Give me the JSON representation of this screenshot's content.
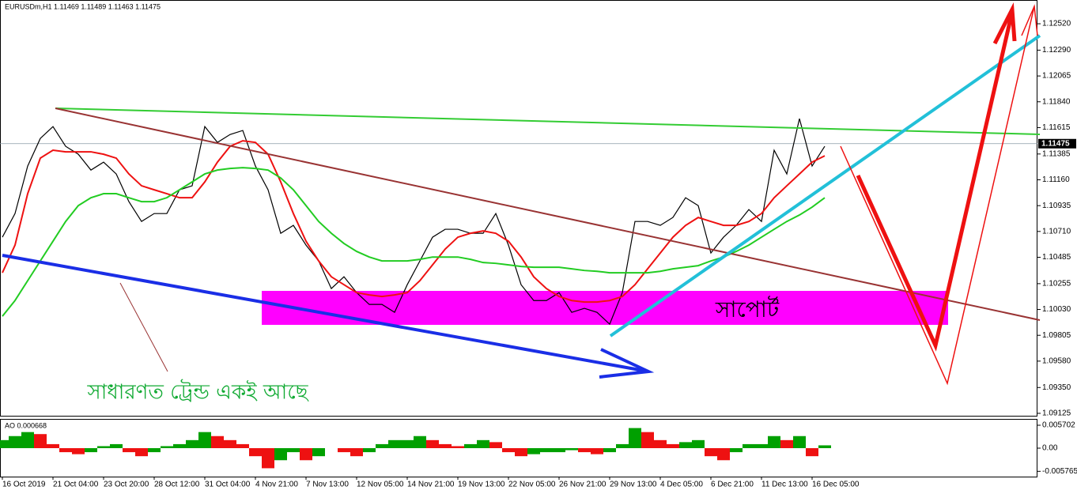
{
  "chart_data": [
    {
      "type": "line",
      "title": "EURUSDm,H1  1.11469 1.11489 1.11463 1.11475",
      "categories": [
        "16 Oct 2019",
        null,
        null,
        null,
        "21 Oct 04:00",
        null,
        null,
        null,
        "23 Oct 20:00",
        null,
        null,
        null,
        "28 Oct 12:00",
        null,
        null,
        null,
        "31 Oct 04:00",
        null,
        null,
        null,
        "4 Nov 21:00",
        null,
        null,
        null,
        "7 Nov 13:00",
        null,
        null,
        null,
        "12 Nov 05:00",
        null,
        null,
        null,
        "14 Nov 21:00",
        null,
        null,
        null,
        "19 Nov 13:00",
        null,
        null,
        null,
        "22 Nov 05:00",
        null,
        null,
        null,
        "26 Nov 21:00",
        null,
        null,
        null,
        "29 Nov 13:00",
        null,
        null,
        null,
        "4 Dec 05:00",
        null,
        null,
        null,
        "6 Dec 21:00",
        null,
        null,
        null,
        "11 Dec 13:00",
        null,
        null,
        null,
        "16 Dec 05:00",
        null
      ],
      "series": [
        {
          "color": "#000000",
          "values": [
            1.1066,
            1.10866,
            1.1128,
            1.11521,
            1.11624,
            1.11452,
            1.11383,
            1.11245,
            1.11314,
            1.11211,
            1.1097,
            1.10797,
            1.10866,
            1.10866,
            1.11073,
            1.11108,
            1.11624,
            1.11486,
            1.11555,
            1.1159,
            1.1128,
            1.11073,
            1.10694,
            1.10763,
            1.10591,
            1.10453,
            1.10212,
            1.10315,
            1.10177,
            1.10074,
            1.10074,
            1.10005,
            1.10246,
            1.10453,
            1.1066,
            1.10729,
            1.10729,
            1.10694,
            1.10694,
            1.10866,
            1.10591,
            1.10246,
            1.10108,
            1.10108,
            1.10177,
            1.10005,
            1.1004,
            1.10005,
            1.09902,
            1.10177,
            1.10797,
            1.10797,
            1.10763,
            1.10832,
            1.11004,
            1.10935,
            1.10522,
            1.1066,
            1.10763,
            1.10901,
            1.10797,
            1.11418,
            1.11211,
            1.11693,
            1.1128,
            1.11452
          ]
        },
        {
          "color": "#ee1111",
          "values": [
            1.1035,
            1.10591,
            1.11039,
            1.11349,
            1.11418,
            1.11404,
            1.11404,
            1.11404,
            1.11383,
            1.11349,
            1.11211,
            1.11108,
            1.11073,
            1.11039,
            1.11004,
            1.11004,
            1.11142,
            1.11314,
            1.11452,
            1.115,
            1.11486,
            1.11383,
            1.11142,
            1.10866,
            1.10625,
            1.10453,
            1.10315,
            1.10246,
            1.10177,
            1.10157,
            1.10143,
            1.10157,
            1.10177,
            1.10281,
            1.10419,
            1.10556,
            1.1066,
            1.10694,
            1.10715,
            1.10694,
            1.10625,
            1.10487,
            1.10315,
            1.10212,
            1.10143,
            1.10108,
            1.10095,
            1.10095,
            1.10108,
            1.10143,
            1.10246,
            1.10384,
            1.10522,
            1.1066,
            1.10763,
            1.10832,
            1.10797,
            1.10763,
            1.10763,
            1.10797,
            1.10866,
            1.11004,
            1.11108,
            1.11211,
            1.11314,
            1.11369
          ]
        },
        {
          "color": "#22cc22",
          "values": [
            1.09971,
            1.10108,
            1.10281,
            1.10453,
            1.10625,
            1.10797,
            1.10935,
            1.11004,
            1.11039,
            1.11039,
            1.11004,
            1.1097,
            1.1097,
            1.11004,
            1.11073,
            1.11142,
            1.11211,
            1.11245,
            1.11259,
            1.11266,
            1.11259,
            1.11245,
            1.11176,
            1.11073,
            1.10935,
            1.10797,
            1.10694,
            1.10605,
            1.10536,
            1.10487,
            1.10453,
            1.10453,
            1.10453,
            1.10467,
            1.10487,
            1.10487,
            1.10487,
            1.10467,
            1.10439,
            1.10432,
            1.10419,
            1.10405,
            1.10398,
            1.10398,
            1.10398,
            1.10384,
            1.1037,
            1.10363,
            1.1035,
            1.1035,
            1.1035,
            1.1035,
            1.10363,
            1.10384,
            1.10398,
            1.10412,
            1.10453,
            1.10487,
            1.10536,
            1.10591,
            1.1066,
            1.10729,
            1.10797,
            1.10853,
            1.10922,
            1.11004
          ]
        }
      ],
      "ylim": [
        1.09097,
        1.12727
      ],
      "yticks": [
        {
          "value": 1.1252,
          "label": "1.12520"
        },
        {
          "value": 1.1229,
          "label": "1.12290"
        },
        1.12065,
        {
          "value": 1.1184,
          "label": "1.11840"
        },
        1.11615,
        1.11385,
        {
          "value": 1.1116,
          "label": "1.11160"
        },
        1.10935,
        {
          "value": 1.1071,
          "label": "1.10710"
        },
        1.10485,
        1.10255,
        {
          "value": 1.1003,
          "label": "1.10030"
        },
        1.09805,
        {
          "value": 1.0958,
          "label": "1.09580"
        },
        {
          "value": 1.0935,
          "label": "1.09350"
        },
        1.09125
      ],
      "current_price": 1.11475,
      "annotations": [
        "সাপোর্ট",
        "সাধারণত ট্রেন্ড একই আছে"
      ]
    },
    {
      "type": "bar",
      "title": "AO 0.000668",
      "values": [
        0.002,
        0.003,
        0.004,
        0.0035,
        0.001,
        -0.001,
        -0.0015,
        -0.001,
        0.0005,
        0.001,
        -0.001,
        -0.002,
        -0.001,
        0.0005,
        0.001,
        0.002,
        0.004,
        0.003,
        0.002,
        0.001,
        -0.002,
        -0.005,
        -0.003,
        -0.001,
        -0.003,
        -0.002,
        0.0,
        -0.001,
        -0.002,
        -0.001,
        0.001,
        0.002,
        0.002,
        0.003,
        0.002,
        0.001,
        0.0005,
        0.001,
        0.002,
        0.0015,
        -0.001,
        -0.002,
        -0.0015,
        -0.001,
        -0.001,
        -0.0005,
        -0.001,
        -0.0015,
        -0.001,
        0.001,
        0.005,
        0.004,
        0.002,
        0.001,
        0.0015,
        0.002,
        -0.002,
        -0.003,
        -0.001,
        0.001,
        0.001,
        0.003,
        0.002,
        0.003,
        -0.002,
        0.0007
      ],
      "colors": [
        "#00a000",
        "#ee1111"
      ],
      "ylim": [
        -0.00708,
        0.00708
      ],
      "yticks": [
        0.005702,
        {
          "value": 0,
          "label": "0.00"
        },
        -0.005765
      ]
    }
  ]
}
